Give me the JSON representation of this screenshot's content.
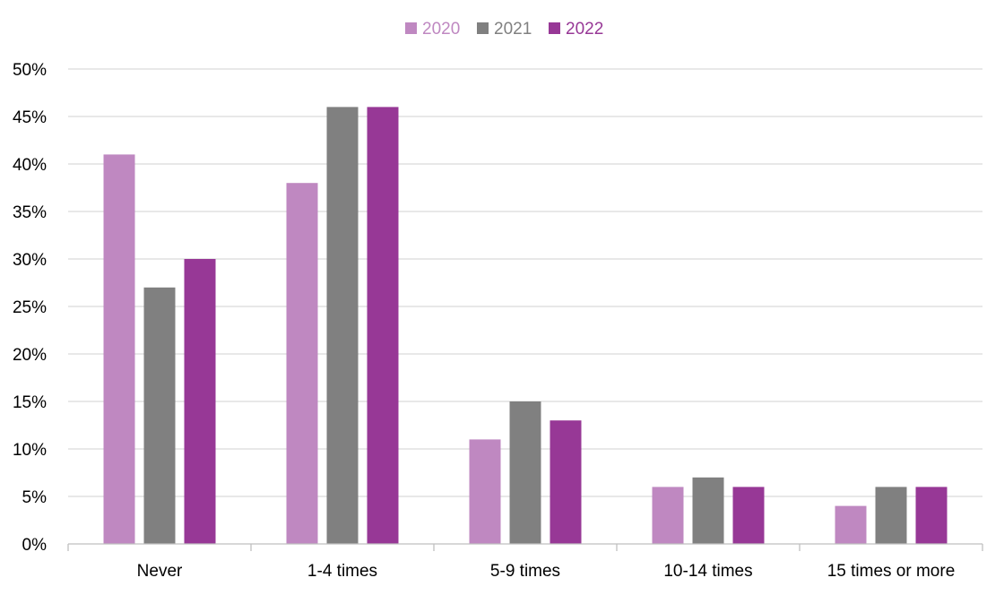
{
  "chart_data": {
    "type": "bar",
    "categories": [
      "Never",
      "1-4 times",
      "5-9 times",
      "10-14 times",
      "15 times or more"
    ],
    "series": [
      {
        "name": "2020",
        "color": "#bf88c1",
        "values": [
          41,
          38,
          11,
          6,
          4
        ]
      },
      {
        "name": "2021",
        "color": "#808080",
        "values": [
          27,
          46,
          15,
          7,
          6
        ]
      },
      {
        "name": "2022",
        "color": "#973896",
        "values": [
          30,
          46,
          13,
          6,
          6
        ]
      }
    ],
    "ylim": [
      0,
      50
    ],
    "yticks": [
      0,
      5,
      10,
      15,
      20,
      25,
      30,
      35,
      40,
      45,
      50
    ],
    "ytick_labels": [
      "0%",
      "5%",
      "10%",
      "15%",
      "20%",
      "25%",
      "30%",
      "35%",
      "40%",
      "45%",
      "50%"
    ],
    "grid": true,
    "legend_position": "top-center",
    "title": "",
    "xlabel": "",
    "ylabel": ""
  }
}
